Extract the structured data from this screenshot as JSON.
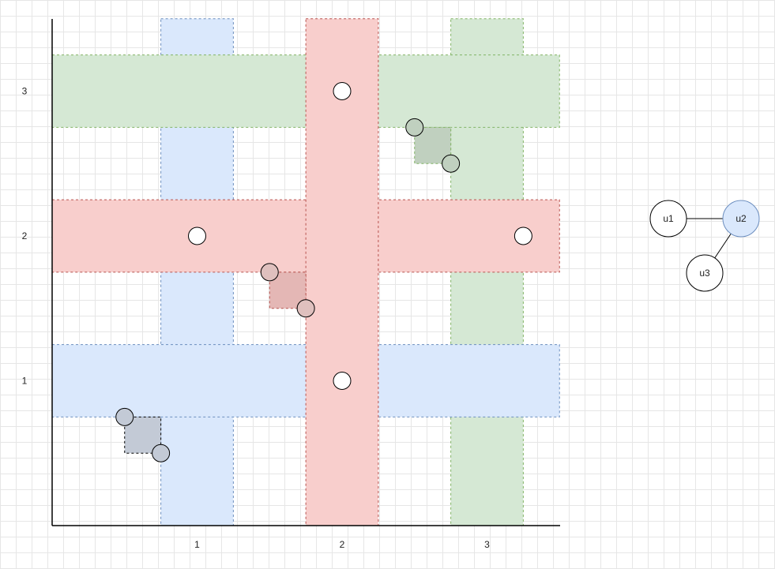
{
  "plot": {
    "x_ticks": [
      {
        "value": 1,
        "label": "1"
      },
      {
        "value": 2,
        "label": "2"
      },
      {
        "value": 3,
        "label": "3"
      }
    ],
    "y_ticks": [
      {
        "value": 1,
        "label": "1"
      },
      {
        "value": 2,
        "label": "2"
      },
      {
        "value": 3,
        "label": "3"
      }
    ],
    "x_range": [
      0,
      3.5
    ],
    "y_range": [
      0,
      3.5
    ],
    "colors": {
      "blue_fill": "#dae8fc",
      "blue_stroke": "#6c8ebf",
      "red_fill": "#f8cecc",
      "red_stroke": "#b85450",
      "green_fill": "#d5e8d4",
      "green_stroke": "#82b366",
      "axis": "#000000",
      "grid": "#e6e6e6"
    },
    "bands": [
      {
        "name": "blue-vertical-band",
        "color": "blue",
        "orientation": "vertical",
        "from": 0.75,
        "to": 1.25,
        "start": 0,
        "end": 3.5
      },
      {
        "name": "green-vertical-band",
        "color": "green",
        "orientation": "vertical",
        "from": 2.75,
        "to": 3.25,
        "start": 0,
        "end": 3.5
      },
      {
        "name": "blue-horizontal-band",
        "color": "blue",
        "orientation": "horizontal",
        "from": 0.75,
        "to": 1.25,
        "start": 0,
        "end": 3.5
      },
      {
        "name": "red-horizontal-band",
        "color": "red",
        "orientation": "horizontal",
        "from": 1.75,
        "to": 2.25,
        "start": 0,
        "end": 3.5
      },
      {
        "name": "green-horizontal-band",
        "color": "green",
        "orientation": "horizontal",
        "from": 2.75,
        "to": 3.25,
        "start": 0,
        "end": 3.5
      },
      {
        "name": "red-vertical-band",
        "color": "red",
        "orientation": "vertical",
        "from": 1.75,
        "to": 2.25,
        "start": 0,
        "end": 3.5
      }
    ],
    "squares": [
      {
        "name": "blue-corner-square",
        "color": "blue",
        "x1": 0.5,
        "y1": 0.5,
        "x2": 0.75,
        "y2": 0.75
      },
      {
        "name": "red-corner-square",
        "color": "red",
        "x1": 1.5,
        "y1": 1.5,
        "x2": 1.75,
        "y2": 1.75
      },
      {
        "name": "green-corner-square",
        "color": "green",
        "x1": 2.5,
        "y1": 2.5,
        "x2": 2.75,
        "y2": 2.75
      }
    ],
    "points": [
      {
        "name": "point-2-3",
        "x": 2,
        "y": 3,
        "fill": "#ffffff"
      },
      {
        "name": "point-1-2",
        "x": 1,
        "y": 2,
        "fill": "#ffffff"
      },
      {
        "name": "point-3.25-2",
        "x": 3.25,
        "y": 2,
        "fill": "#ffffff"
      },
      {
        "name": "point-2-1",
        "x": 2,
        "y": 1,
        "fill": "#ffffff"
      },
      {
        "name": "point-0.5-0.75",
        "x": 0.5,
        "y": 0.75,
        "fill": "#c3cad6"
      },
      {
        "name": "point-0.75-0.5",
        "x": 0.75,
        "y": 0.5,
        "fill": "#c3cad6"
      },
      {
        "name": "point-1.5-1.75",
        "x": 1.5,
        "y": 1.75,
        "fill": "#dfc0be"
      },
      {
        "name": "point-1.75-1.5",
        "x": 1.75,
        "y": 1.5,
        "fill": "#dfc0be"
      },
      {
        "name": "point-2.5-2.75",
        "x": 2.5,
        "y": 2.75,
        "fill": "#c0d0bf"
      },
      {
        "name": "point-2.75-2.5",
        "x": 2.75,
        "y": 2.5,
        "fill": "#c0d0bf"
      }
    ]
  },
  "graph": {
    "nodes": [
      {
        "id": "u1",
        "label": "u1",
        "fill": "#ffffff",
        "stroke": "#000000"
      },
      {
        "id": "u2",
        "label": "u2",
        "fill": "#dae8fc",
        "stroke": "#6c8ebf"
      },
      {
        "id": "u3",
        "label": "u3",
        "fill": "#ffffff",
        "stroke": "#000000"
      }
    ],
    "edges": [
      {
        "from": "u1",
        "to": "u2"
      },
      {
        "from": "u2",
        "to": "u3"
      }
    ]
  }
}
